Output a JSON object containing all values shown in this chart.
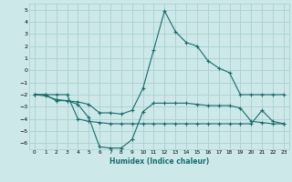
{
  "xlabel": "Humidex (Indice chaleur)",
  "xlim": [
    -0.5,
    23.5
  ],
  "ylim": [
    -6.5,
    5.5
  ],
  "yticks": [
    5,
    4,
    3,
    2,
    1,
    0,
    -1,
    -2,
    -3,
    -4,
    -5,
    -6
  ],
  "xticks": [
    0,
    1,
    2,
    3,
    4,
    5,
    6,
    7,
    8,
    9,
    10,
    11,
    12,
    13,
    14,
    15,
    16,
    17,
    18,
    19,
    20,
    21,
    22,
    23
  ],
  "bg_color": "#cce8e8",
  "grid_color": "#aacfcf",
  "line_color": "#1a6b6b",
  "line1_x": [
    0,
    1,
    2,
    3,
    4,
    5,
    6,
    7,
    8,
    9,
    10,
    11,
    12,
    13,
    14,
    15,
    16,
    17,
    18,
    19,
    20,
    21,
    22,
    23
  ],
  "line1_y": [
    -2.0,
    -2.1,
    -2.4,
    -2.5,
    -2.6,
    -2.8,
    -3.5,
    -3.5,
    -3.6,
    -3.3,
    -1.5,
    1.7,
    4.9,
    3.2,
    2.3,
    2.0,
    0.8,
    0.2,
    -0.2,
    -2.0,
    -2.0,
    -2.0,
    -2.0,
    -2.0
  ],
  "line2_x": [
    0,
    1,
    2,
    3,
    4,
    5,
    6,
    7,
    8,
    9,
    10,
    11,
    12,
    13,
    14,
    15,
    16,
    17,
    18,
    19,
    20,
    21,
    22,
    23
  ],
  "line2_y": [
    -2.0,
    -2.0,
    -2.5,
    -2.5,
    -2.8,
    -3.9,
    -6.3,
    -6.4,
    -6.4,
    -5.7,
    -3.4,
    -2.7,
    -2.7,
    -2.7,
    -2.7,
    -2.8,
    -2.9,
    -2.9,
    -2.9,
    -3.1,
    -4.2,
    -4.3,
    -4.4,
    -4.4
  ],
  "line3_x": [
    0,
    1,
    2,
    3,
    4,
    5,
    6,
    7,
    8,
    9,
    10,
    11,
    12,
    13,
    14,
    15,
    16,
    17,
    18,
    19,
    20,
    21,
    22,
    23
  ],
  "line3_y": [
    -2.0,
    -2.0,
    -2.0,
    -2.0,
    -4.0,
    -4.2,
    -4.3,
    -4.4,
    -4.4,
    -4.4,
    -4.4,
    -4.4,
    -4.4,
    -4.4,
    -4.4,
    -4.4,
    -4.4,
    -4.4,
    -4.4,
    -4.4,
    -4.4,
    -3.3,
    -4.2,
    -4.4
  ]
}
